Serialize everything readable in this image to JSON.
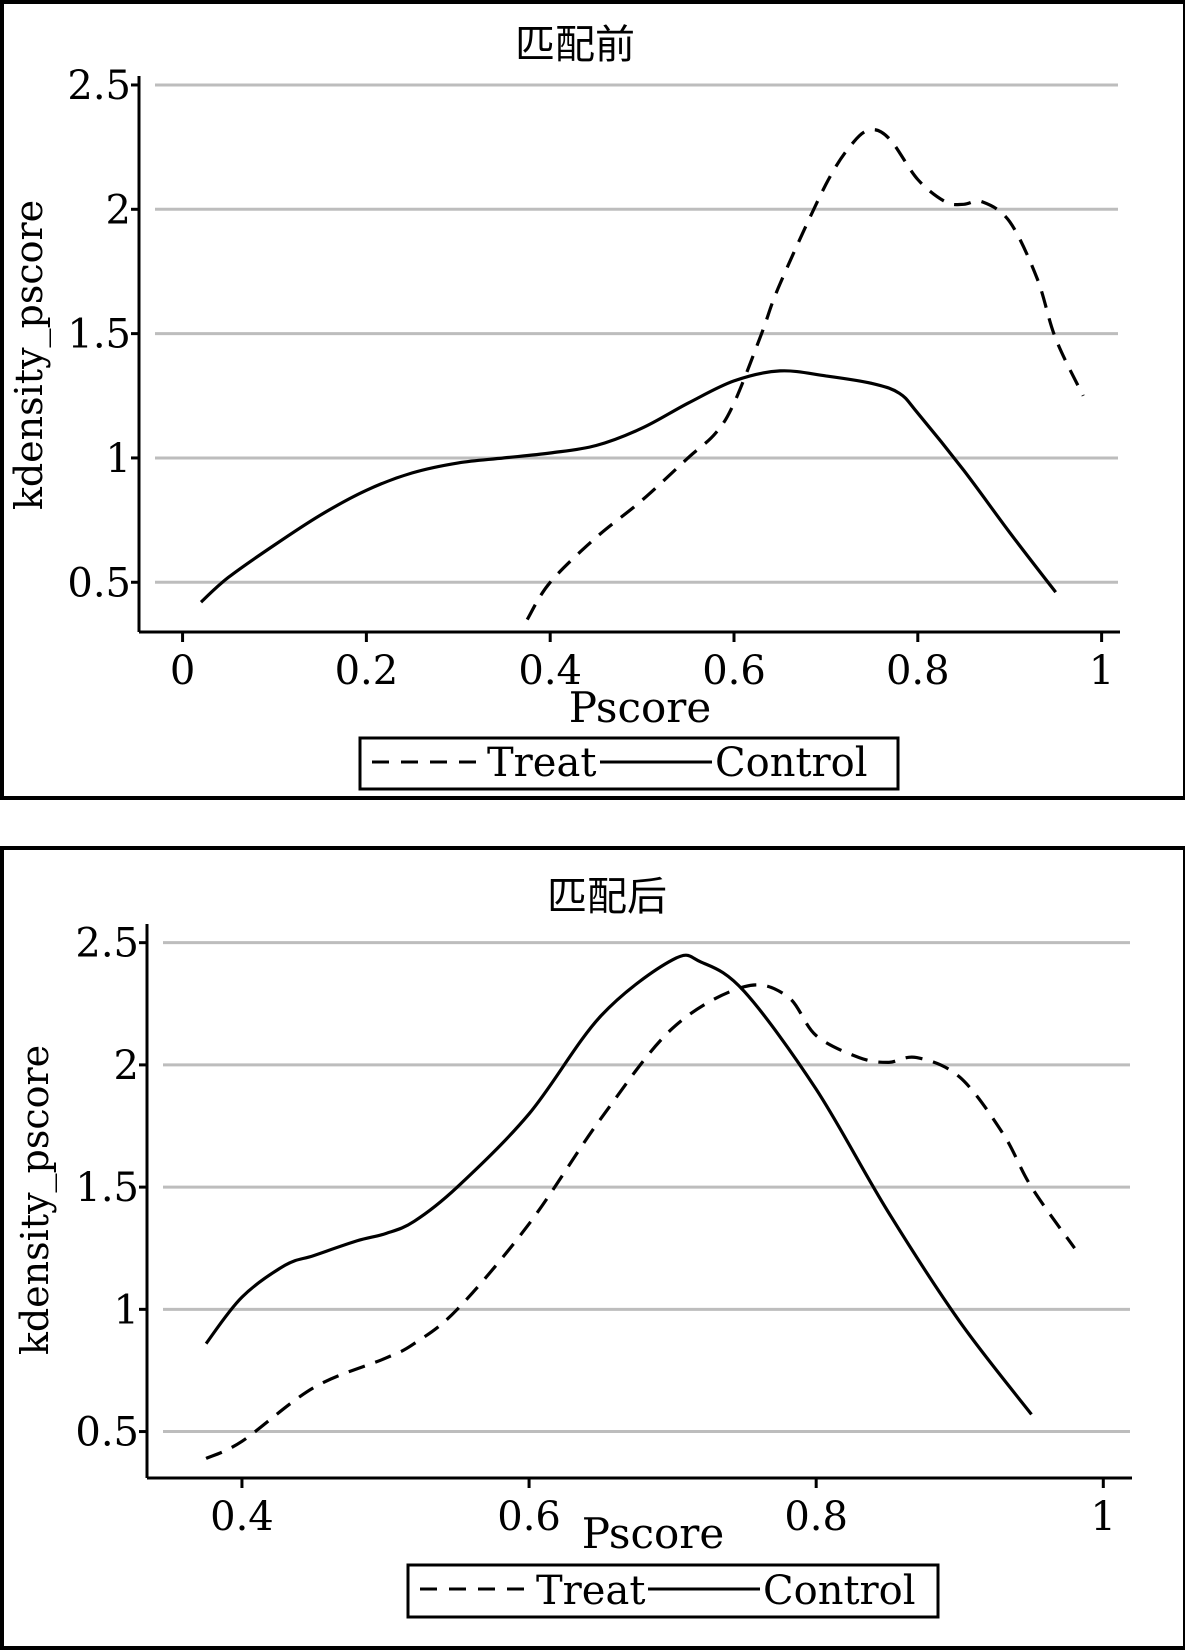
{
  "chart_data": [
    {
      "type": "line",
      "title": "匹配前",
      "xlabel": "Pscore",
      "ylabel": "kdensity_pscore",
      "xlim": [
        -0.03,
        1.02
      ],
      "ylim": [
        0.3,
        2.52
      ],
      "xticks": [
        0,
        0.2,
        0.4,
        0.6,
        0.8,
        1
      ],
      "xtick_labels": [
        "0",
        "0.2",
        "0.4",
        "0.6",
        "0.8",
        "1"
      ],
      "yticks": [
        0.5,
        1,
        1.5,
        2,
        2.5
      ],
      "ytick_labels": [
        "0.5",
        "1",
        "1.5",
        "2",
        "2.5"
      ],
      "grid": "horizontal",
      "legend_position": "bottom",
      "series": [
        {
          "name": "Treat",
          "style": "dashed",
          "x": [
            0.375,
            0.4,
            0.45,
            0.5,
            0.55,
            0.58,
            0.6,
            0.63,
            0.65,
            0.7,
            0.73,
            0.75,
            0.77,
            0.8,
            0.83,
            0.85,
            0.87,
            0.9,
            0.93,
            0.95,
            0.98
          ],
          "y": [
            0.35,
            0.5,
            0.68,
            0.83,
            1.0,
            1.1,
            1.22,
            1.5,
            1.7,
            2.1,
            2.27,
            2.32,
            2.28,
            2.12,
            2.03,
            2.02,
            2.03,
            1.95,
            1.72,
            1.48,
            1.25
          ]
        },
        {
          "name": "Control",
          "style": "solid",
          "x": [
            0.02,
            0.05,
            0.1,
            0.15,
            0.2,
            0.25,
            0.3,
            0.35,
            0.4,
            0.45,
            0.5,
            0.55,
            0.6,
            0.65,
            0.7,
            0.75,
            0.78,
            0.8,
            0.85,
            0.9,
            0.95
          ],
          "y": [
            0.42,
            0.52,
            0.65,
            0.77,
            0.87,
            0.94,
            0.98,
            1.0,
            1.02,
            1.05,
            1.12,
            1.22,
            1.31,
            1.35,
            1.33,
            1.3,
            1.26,
            1.18,
            0.95,
            0.7,
            0.46
          ]
        }
      ]
    },
    {
      "type": "line",
      "title": "匹配后",
      "xlabel": "Pscore",
      "ylabel": "kdensity_pscore",
      "xlim": [
        0.345,
        1.02
      ],
      "ylim": [
        0.31,
        2.56
      ],
      "xticks": [
        0.4,
        0.6,
        0.8,
        1
      ],
      "xtick_labels": [
        "0.4",
        "0.6",
        "0.8",
        "1"
      ],
      "yticks": [
        0.5,
        1,
        1.5,
        2,
        2.5
      ],
      "ytick_labels": [
        "0.5",
        "1",
        "1.5",
        "2",
        "2.5"
      ],
      "grid": "horizontal",
      "legend_position": "bottom",
      "series": [
        {
          "name": "Treat",
          "style": "dashed",
          "x": [
            0.375,
            0.4,
            0.45,
            0.5,
            0.52,
            0.55,
            0.6,
            0.65,
            0.7,
            0.75,
            0.78,
            0.8,
            0.83,
            0.85,
            0.87,
            0.9,
            0.93,
            0.95,
            0.98
          ],
          "y": [
            0.39,
            0.46,
            0.68,
            0.8,
            0.86,
            1.0,
            1.35,
            1.78,
            2.15,
            2.32,
            2.28,
            2.12,
            2.03,
            2.01,
            2.03,
            1.95,
            1.72,
            1.5,
            1.25
          ]
        },
        {
          "name": "Control",
          "style": "solid",
          "x": [
            0.375,
            0.4,
            0.43,
            0.45,
            0.48,
            0.5,
            0.52,
            0.55,
            0.6,
            0.65,
            0.7,
            0.72,
            0.75,
            0.8,
            0.85,
            0.9,
            0.95
          ],
          "y": [
            0.86,
            1.05,
            1.18,
            1.22,
            1.28,
            1.31,
            1.36,
            1.5,
            1.8,
            2.2,
            2.43,
            2.42,
            2.3,
            1.9,
            1.4,
            0.95,
            0.57
          ]
        }
      ]
    }
  ]
}
